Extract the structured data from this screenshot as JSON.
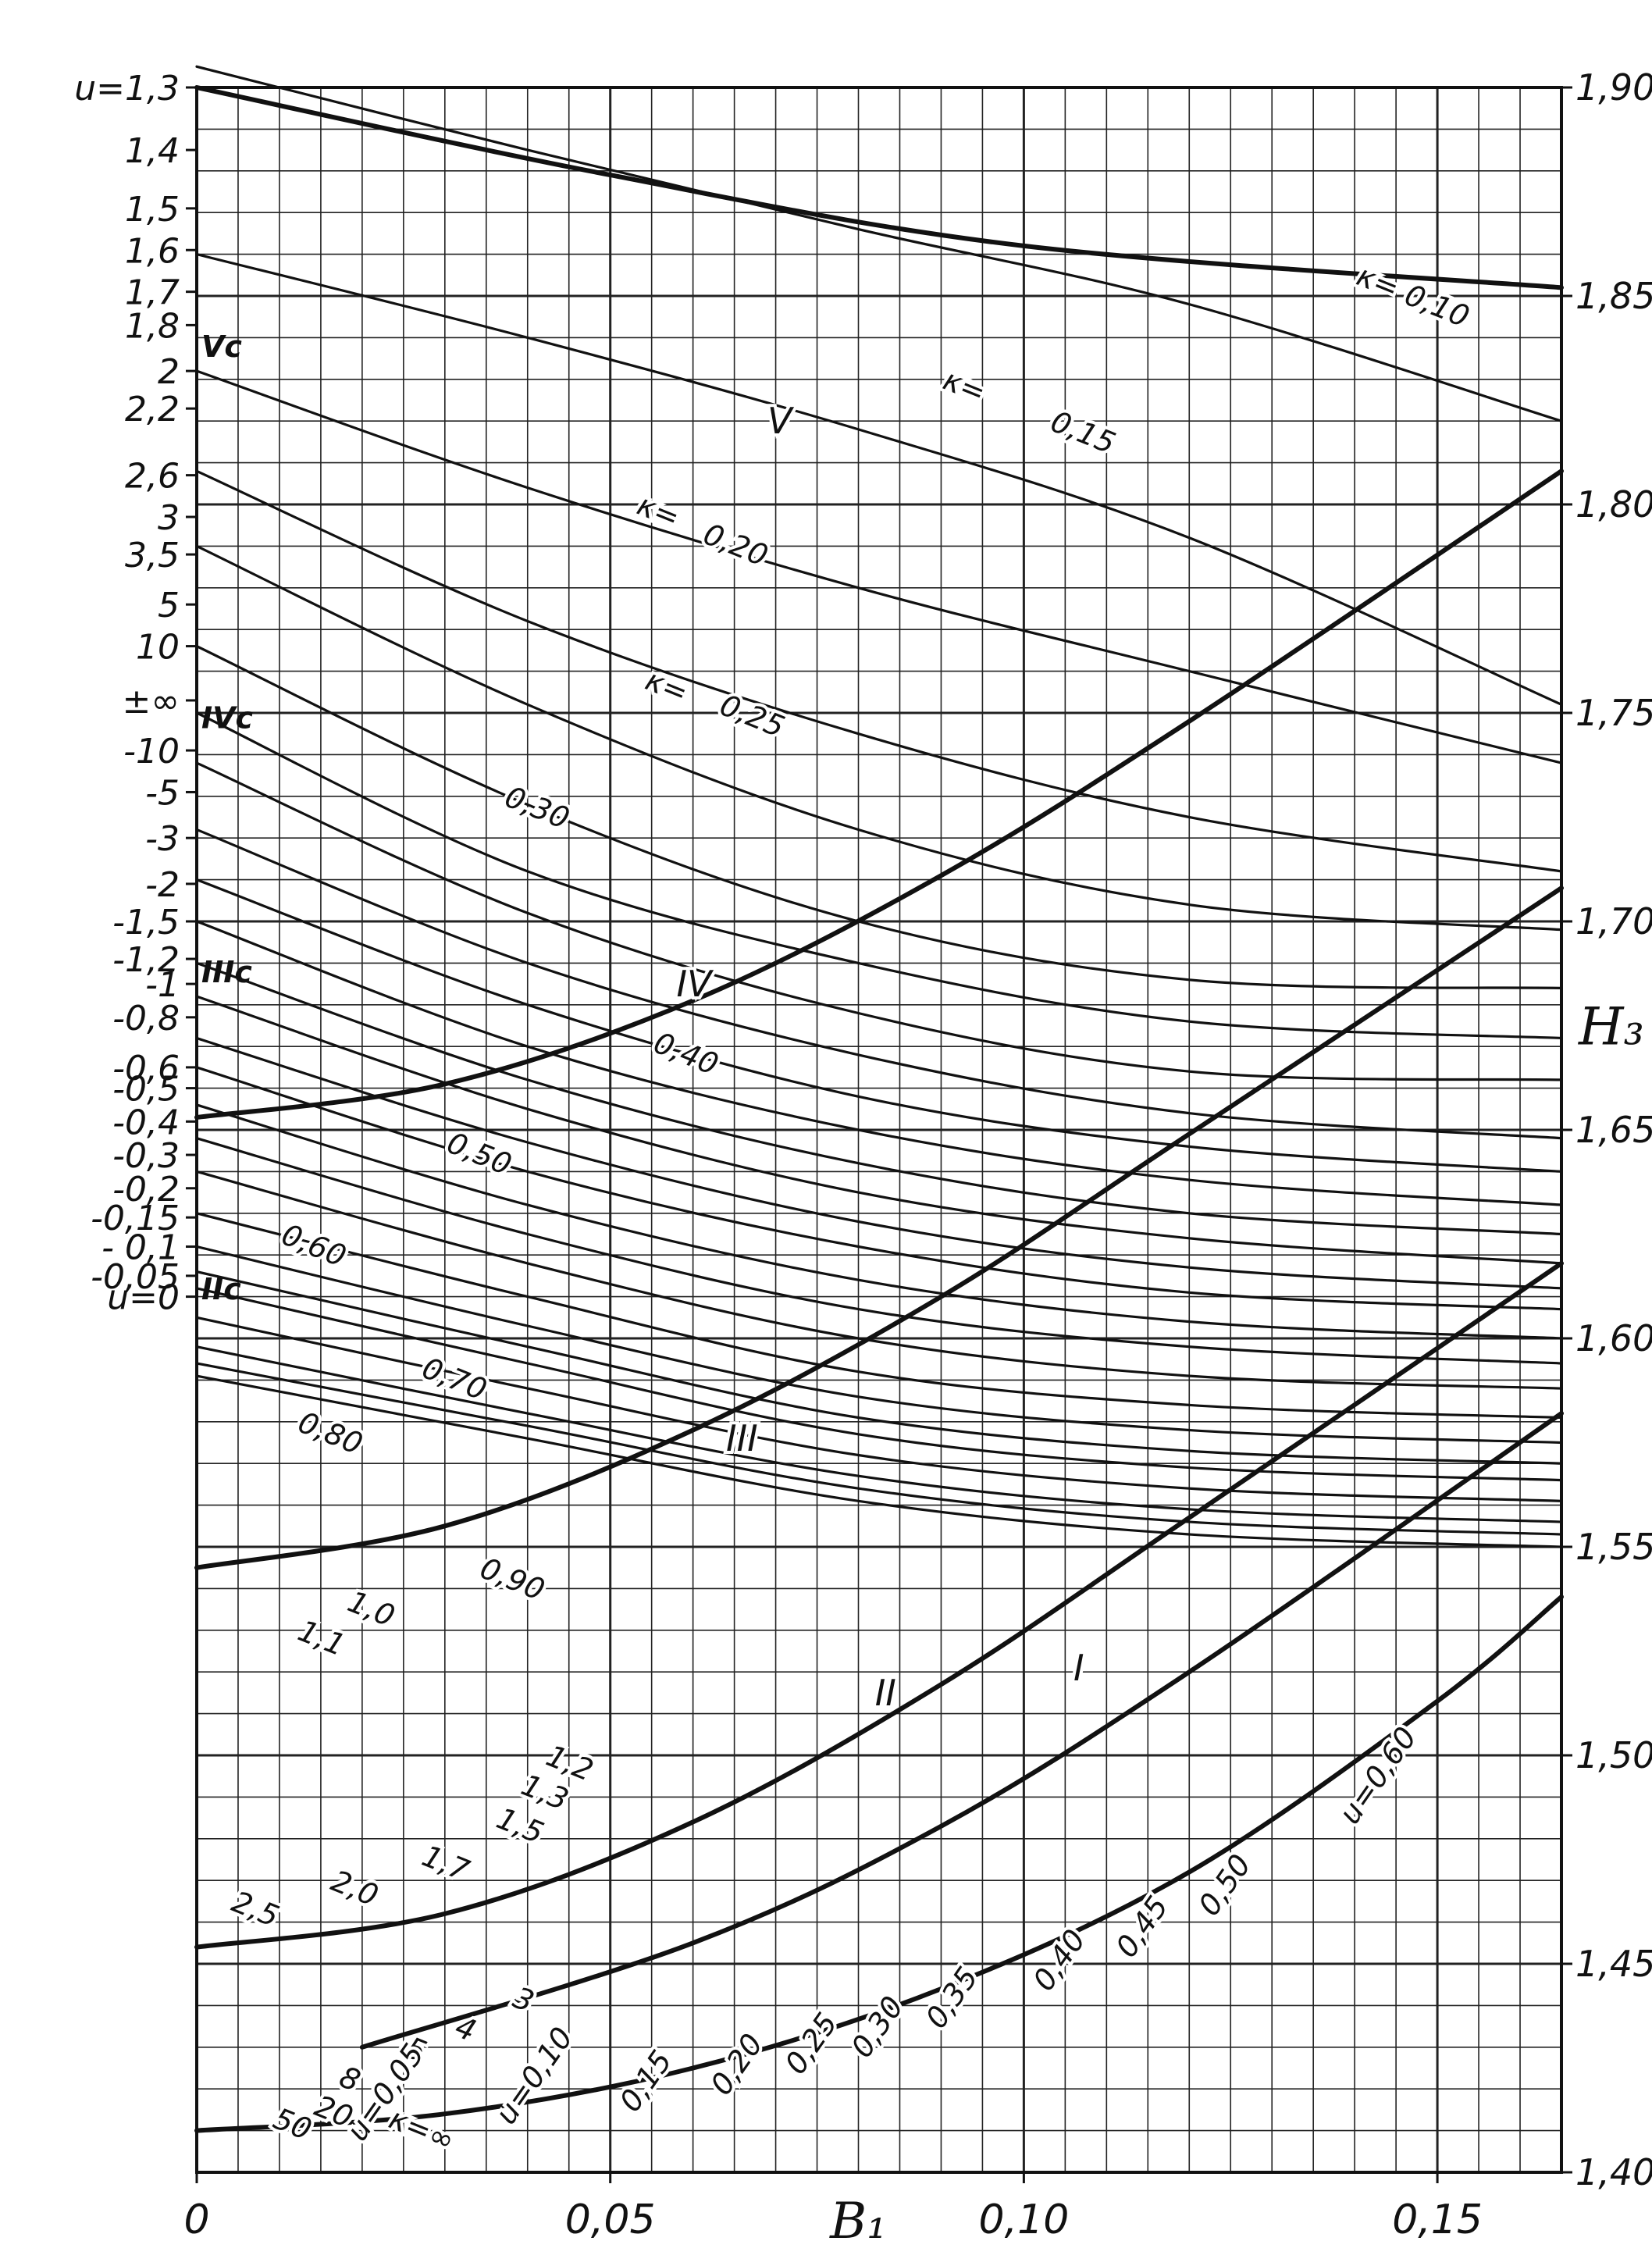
{
  "chart_data": {
    "type": "line",
    "title": "",
    "xlabel": "B₁",
    "ylabel_right": "H₃",
    "xlim": [
      0,
      0.165
    ],
    "ylim_right": [
      1.4,
      1.9
    ],
    "grid": true,
    "x_ticks": [
      "0",
      "0,05",
      "0,10",
      "0,15"
    ],
    "x_tick_values": [
      0,
      0.05,
      0.1,
      0.15
    ],
    "right_ticks": [
      "1,90",
      "1,85",
      "1,80",
      "1,75",
      "1,70",
      "1,65",
      "1,60",
      "1,55",
      "1,50",
      "1,45",
      "1,40"
    ],
    "right_tick_values": [
      1.9,
      1.85,
      1.8,
      1.75,
      1.7,
      1.65,
      1.6,
      1.55,
      1.5,
      1.45,
      1.4
    ],
    "left_ticks": [
      {
        "label": "u=1,3",
        "h": 1.9
      },
      {
        "label": "1,4",
        "h": 1.885
      },
      {
        "label": "1,5",
        "h": 1.871
      },
      {
        "label": "1,6",
        "h": 1.861
      },
      {
        "label": "1,7",
        "h": 1.851
      },
      {
        "label": "1,8",
        "h": 1.843
      },
      {
        "label": "2",
        "h": 1.832
      },
      {
        "label": "2,2",
        "h": 1.823
      },
      {
        "label": "2,6",
        "h": 1.807
      },
      {
        "label": "3",
        "h": 1.797
      },
      {
        "label": "3,5",
        "h": 1.788
      },
      {
        "label": "5",
        "h": 1.776
      },
      {
        "label": "10",
        "h": 1.766
      },
      {
        "label": "±∞",
        "h": 1.753
      },
      {
        "label": "-10",
        "h": 1.741
      },
      {
        "label": "-5",
        "h": 1.731
      },
      {
        "label": "-3",
        "h": 1.72
      },
      {
        "label": "-2",
        "h": 1.709
      },
      {
        "label": "-1,5",
        "h": 1.7
      },
      {
        "label": "-1,2",
        "h": 1.691
      },
      {
        "label": "-1",
        "h": 1.685
      },
      {
        "label": "-0,8",
        "h": 1.677
      },
      {
        "label": "-0,6",
        "h": 1.665
      },
      {
        "label": "-0,5",
        "h": 1.66
      },
      {
        "label": "-0,4",
        "h": 1.652
      },
      {
        "label": "-0,3",
        "h": 1.644
      },
      {
        "label": "-0,2",
        "h": 1.636
      },
      {
        "label": "-0,15",
        "h": 1.629
      },
      {
        "label": "- 0,1",
        "h": 1.622
      },
      {
        "label": "-0,05",
        "h": 1.615
      },
      {
        "label": "u=0",
        "h": 1.61
      }
    ],
    "left_markers": [
      {
        "label": "Vc",
        "h": 1.838
      },
      {
        "label": "IVc",
        "h": 1.749
      },
      {
        "label": "IIIc",
        "h": 1.688
      },
      {
        "label": "IIc",
        "h": 1.612
      }
    ],
    "series": [
      {
        "name": "κ=0,10",
        "type": "kappa",
        "x": [
          0,
          0.04,
          0.08,
          0.12,
          0.165
        ],
        "y": [
          1.905,
          1.885,
          1.866,
          1.848,
          1.82
        ]
      },
      {
        "name": "κ=0,15",
        "type": "kappa",
        "x": [
          0,
          0.04,
          0.08,
          0.12,
          0.165
        ],
        "y": [
          1.86,
          1.84,
          1.818,
          1.792,
          1.752
        ]
      },
      {
        "name": "κ=0,20",
        "type": "kappa",
        "x": [
          0,
          0.04,
          0.08,
          0.12,
          0.165
        ],
        "y": [
          1.832,
          1.804,
          1.78,
          1.76,
          1.738
        ]
      },
      {
        "name": "κ=0,25",
        "type": "kappa",
        "x": [
          0,
          0.04,
          0.08,
          0.12,
          0.165
        ],
        "y": [
          1.808,
          1.772,
          1.745,
          1.725,
          1.712
        ]
      },
      {
        "name": "0,30",
        "type": "kappa",
        "x": [
          0,
          0.04,
          0.08,
          0.12,
          0.165
        ],
        "y": [
          1.79,
          1.752,
          1.722,
          1.704,
          1.698
        ]
      },
      {
        "name": "0,40",
        "type": "kappa",
        "x": [
          0,
          0.04,
          0.08,
          0.12,
          0.165
        ],
        "y": [
          1.766,
          1.728,
          1.7,
          1.686,
          1.684
        ]
      },
      {
        "name": "0,50",
        "type": "kappa",
        "x": [
          0,
          0.04,
          0.08,
          0.12,
          0.165
        ],
        "y": [
          1.75,
          1.712,
          1.69,
          1.676,
          1.672
        ]
      },
      {
        "name": "0,60",
        "type": "kappa",
        "x": [
          0,
          0.04,
          0.08,
          0.12,
          0.165
        ],
        "y": [
          1.738,
          1.702,
          1.678,
          1.664,
          1.662
        ]
      },
      {
        "name": "0,70",
        "type": "kappa",
        "x": [
          0,
          0.04,
          0.08,
          0.12,
          0.165
        ],
        "y": [
          1.722,
          1.69,
          1.668,
          1.654,
          1.648
        ]
      },
      {
        "name": "0,80",
        "type": "kappa",
        "x": [
          0,
          0.04,
          0.08,
          0.12,
          0.165
        ],
        "y": [
          1.71,
          1.68,
          1.658,
          1.646,
          1.64
        ]
      },
      {
        "name": "0,90",
        "type": "kappa",
        "x": [
          0,
          0.04,
          0.08,
          0.12,
          0.165
        ],
        "y": [
          1.7,
          1.67,
          1.65,
          1.638,
          1.632
        ]
      },
      {
        "name": "1,0",
        "type": "kappa",
        "x": [
          0,
          0.04,
          0.08,
          0.12,
          0.165
        ],
        "y": [
          1.69,
          1.662,
          1.642,
          1.63,
          1.625
        ]
      },
      {
        "name": "1,1",
        "type": "kappa",
        "x": [
          0,
          0.04,
          0.08,
          0.12,
          0.165
        ],
        "y": [
          1.682,
          1.655,
          1.635,
          1.624,
          1.618
        ]
      },
      {
        "name": "1,2",
        "type": "kappa",
        "x": [
          0,
          0.04,
          0.08,
          0.12,
          0.165
        ],
        "y": [
          1.672,
          1.647,
          1.628,
          1.617,
          1.612
        ]
      },
      {
        "name": "1,3",
        "type": "kappa",
        "x": [
          0,
          0.04,
          0.08,
          0.12,
          0.165
        ],
        "y": [
          1.665,
          1.64,
          1.622,
          1.611,
          1.607
        ]
      },
      {
        "name": "1,5",
        "type": "kappa",
        "x": [
          0,
          0.04,
          0.08,
          0.12,
          0.165
        ],
        "y": [
          1.656,
          1.632,
          1.614,
          1.604,
          1.6
        ]
      },
      {
        "name": "1,7",
        "type": "kappa",
        "x": [
          0,
          0.04,
          0.08,
          0.12,
          0.165
        ],
        "y": [
          1.648,
          1.625,
          1.607,
          1.598,
          1.594
        ]
      },
      {
        "name": "2,0",
        "type": "kappa",
        "x": [
          0,
          0.04,
          0.08,
          0.12,
          0.165
        ],
        "y": [
          1.64,
          1.618,
          1.6,
          1.591,
          1.588
        ]
      },
      {
        "name": "2,5",
        "type": "kappa",
        "x": [
          0,
          0.04,
          0.08,
          0.12,
          0.165
        ],
        "y": [
          1.63,
          1.61,
          1.592,
          1.584,
          1.581
        ]
      },
      {
        "name": "3",
        "type": "kappa",
        "x": [
          0,
          0.04,
          0.08,
          0.12,
          0.165
        ],
        "y": [
          1.622,
          1.603,
          1.586,
          1.578,
          1.575
        ]
      },
      {
        "name": "4",
        "type": "kappa",
        "x": [
          0,
          0.04,
          0.08,
          0.12,
          0.165
        ],
        "y": [
          1.616,
          1.598,
          1.581,
          1.573,
          1.57
        ]
      },
      {
        "name": "5",
        "type": "kappa",
        "x": [
          0,
          0.04,
          0.08,
          0.12,
          0.165
        ],
        "y": [
          1.612,
          1.594,
          1.577,
          1.569,
          1.566
        ]
      },
      {
        "name": "8",
        "type": "kappa",
        "x": [
          0,
          0.04,
          0.08,
          0.12,
          0.165
        ],
        "y": [
          1.605,
          1.588,
          1.572,
          1.564,
          1.561
        ]
      },
      {
        "name": "20",
        "type": "kappa",
        "x": [
          0,
          0.04,
          0.08,
          0.12,
          0.165
        ],
        "y": [
          1.598,
          1.582,
          1.567,
          1.559,
          1.556
        ]
      },
      {
        "name": "50",
        "type": "kappa",
        "x": [
          0,
          0.04,
          0.08,
          0.12,
          0.165
        ],
        "y": [
          1.594,
          1.579,
          1.564,
          1.556,
          1.553
        ]
      },
      {
        "name": "κ=∞",
        "type": "kappa",
        "x": [
          0,
          0.04,
          0.08,
          0.12,
          0.165
        ],
        "y": [
          1.591,
          1.576,
          1.561,
          1.553,
          1.55
        ]
      },
      {
        "name": "V",
        "type": "roman",
        "x": [
          0,
          0.05,
          0.1,
          0.165
        ],
        "y": [
          1.9,
          1.879,
          1.862,
          1.852
        ]
      },
      {
        "name": "IV",
        "type": "roman",
        "x": [
          0,
          0.03,
          0.06,
          0.09,
          0.12,
          0.165
        ],
        "y": [
          1.653,
          1.661,
          1.681,
          1.711,
          1.748,
          1.808
        ]
      },
      {
        "name": "III",
        "type": "roman",
        "x": [
          0,
          0.03,
          0.06,
          0.09,
          0.12,
          0.165
        ],
        "y": [
          1.545,
          1.555,
          1.578,
          1.61,
          1.649,
          1.708
        ]
      },
      {
        "name": "II",
        "type": "roman",
        "x": [
          0,
          0.03,
          0.06,
          0.09,
          0.12,
          0.165
        ],
        "y": [
          1.454,
          1.462,
          1.484,
          1.517,
          1.557,
          1.618
        ]
      },
      {
        "name": "I",
        "type": "roman",
        "x": [
          0.02,
          0.06,
          0.09,
          0.12,
          0.165
        ],
        "y": [
          1.43,
          1.455,
          1.483,
          1.52,
          1.582
        ]
      },
      {
        "name": "u=0 boundary",
        "type": "boundary",
        "x": [
          0,
          0.03,
          0.06,
          0.09,
          0.12,
          0.15,
          0.165
        ],
        "y": [
          1.41,
          1.414,
          1.425,
          1.444,
          1.472,
          1.513,
          1.538
        ]
      }
    ],
    "u_curve_labels": [
      "u=0,05",
      "u=0,10",
      "0,15",
      "0,20",
      "0,25",
      "0,30",
      "0,35",
      "0,40",
      "0,45",
      "0,50",
      "u=0,60"
    ],
    "u_curve_label_positions": [
      {
        "label": "u=0,05",
        "x": 0.02,
        "h": 1.407
      },
      {
        "label": "u=0,10",
        "x": 0.038,
        "h": 1.411
      },
      {
        "label": "0,15",
        "x": 0.053,
        "h": 1.414
      },
      {
        "label": "0,20",
        "x": 0.064,
        "h": 1.418
      },
      {
        "label": "0,25",
        "x": 0.073,
        "h": 1.423
      },
      {
        "label": "0,30",
        "x": 0.081,
        "h": 1.427
      },
      {
        "label": "0,35",
        "x": 0.09,
        "h": 1.434
      },
      {
        "label": "0,40",
        "x": 0.103,
        "h": 1.443
      },
      {
        "label": "0,45",
        "x": 0.113,
        "h": 1.451
      },
      {
        "label": "0,50",
        "x": 0.123,
        "h": 1.461
      },
      {
        "label": "u=0,60",
        "x": 0.14,
        "h": 1.483
      }
    ],
    "kappa_label_positions": [
      {
        "label": "κ= 0,10",
        "x": 0.14,
        "h": 1.853
      },
      {
        "label": "κ= ",
        "x": 0.09,
        "h": 1.828
      },
      {
        "label": "0,15",
        "x": 0.103,
        "h": 1.818
      },
      {
        "label": "κ= ",
        "x": 0.053,
        "h": 1.798
      },
      {
        "label": "0,20",
        "x": 0.061,
        "h": 1.791
      },
      {
        "label": "κ= ",
        "x": 0.054,
        "h": 1.756
      },
      {
        "label": "0,25",
        "x": 0.063,
        "h": 1.75
      },
      {
        "label": "0,30",
        "x": 0.037,
        "h": 1.728
      },
      {
        "label": "0,40",
        "x": 0.055,
        "h": 1.669
      },
      {
        "label": "0,50",
        "x": 0.03,
        "h": 1.645
      },
      {
        "label": "0,60",
        "x": 0.01,
        "h": 1.623
      },
      {
        "label": "0,70",
        "x": 0.027,
        "h": 1.591
      },
      {
        "label": "0,80",
        "x": 0.012,
        "h": 1.578
      },
      {
        "label": "0,90",
        "x": 0.034,
        "h": 1.543
      },
      {
        "label": "1,0",
        "x": 0.018,
        "h": 1.535
      },
      {
        "label": "1,1",
        "x": 0.012,
        "h": 1.528
      },
      {
        "label": "1,2",
        "x": 0.042,
        "h": 1.498
      },
      {
        "label": "1,3",
        "x": 0.039,
        "h": 1.491
      },
      {
        "label": "1,5",
        "x": 0.036,
        "h": 1.483
      },
      {
        "label": "1,7",
        "x": 0.027,
        "h": 1.474
      },
      {
        "label": "2,0",
        "x": 0.016,
        "h": 1.468
      },
      {
        "label": "2,5",
        "x": 0.004,
        "h": 1.463
      },
      {
        "label": "3",
        "x": 0.038,
        "h": 1.44
      },
      {
        "label": "4",
        "x": 0.031,
        "h": 1.433
      },
      {
        "label": "5",
        "x": 0.025,
        "h": 1.428
      },
      {
        "label": "8",
        "x": 0.017,
        "h": 1.421
      },
      {
        "label": "20",
        "x": 0.014,
        "h": 1.414
      },
      {
        "label": "50",
        "x": 0.009,
        "h": 1.411
      },
      {
        "label": "κ=∞",
        "x": 0.023,
        "h": 1.411
      }
    ],
    "roman_label_positions": [
      {
        "label": "V",
        "x": 0.069,
        "h": 1.817
      },
      {
        "label": "IV",
        "x": 0.058,
        "h": 1.682
      },
      {
        "label": "III",
        "x": 0.064,
        "h": 1.573
      },
      {
        "label": "II",
        "x": 0.082,
        "h": 1.512
      },
      {
        "label": "I",
        "x": 0.106,
        "h": 1.518
      }
    ]
  }
}
